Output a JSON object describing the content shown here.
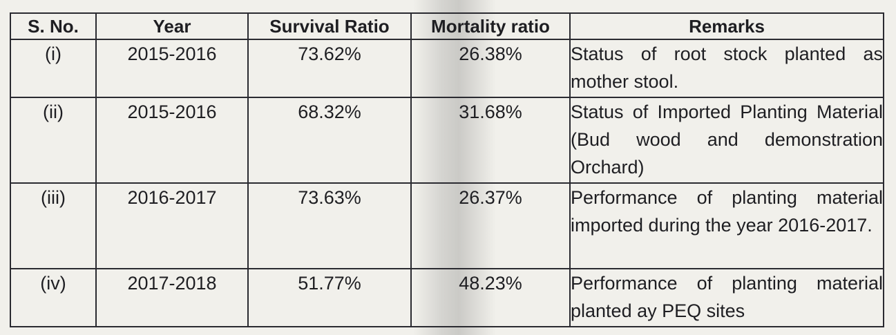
{
  "table": {
    "headers": {
      "sno": "S. No.",
      "year": "Year",
      "survival": "Survival Ratio",
      "mortality": "Mortality ratio",
      "remarks": "Remarks"
    },
    "rows": [
      {
        "sno": "(i)",
        "year": "2015-2016",
        "survival": "73.62%",
        "mortality": "26.38%",
        "remarks": "Status of root stock planted as mother stool."
      },
      {
        "sno": "(ii)",
        "year": "2015-2016",
        "survival": "68.32%",
        "mortality": "31.68%",
        "remarks": "Status of Imported Planting Material (Bud wood and demonstration Orchard)"
      },
      {
        "sno": "(iii)",
        "year": "2016-2017",
        "survival": "73.63%",
        "mortality": "26.37%",
        "remarks": "Performance of planting material imported during the year 2016-2017."
      },
      {
        "sno": "(iv)",
        "year": "2017-2018",
        "survival": "51.77%",
        "mortality": "48.23%",
        "remarks": "Performance of planting material planted ay PEQ sites"
      }
    ]
  }
}
